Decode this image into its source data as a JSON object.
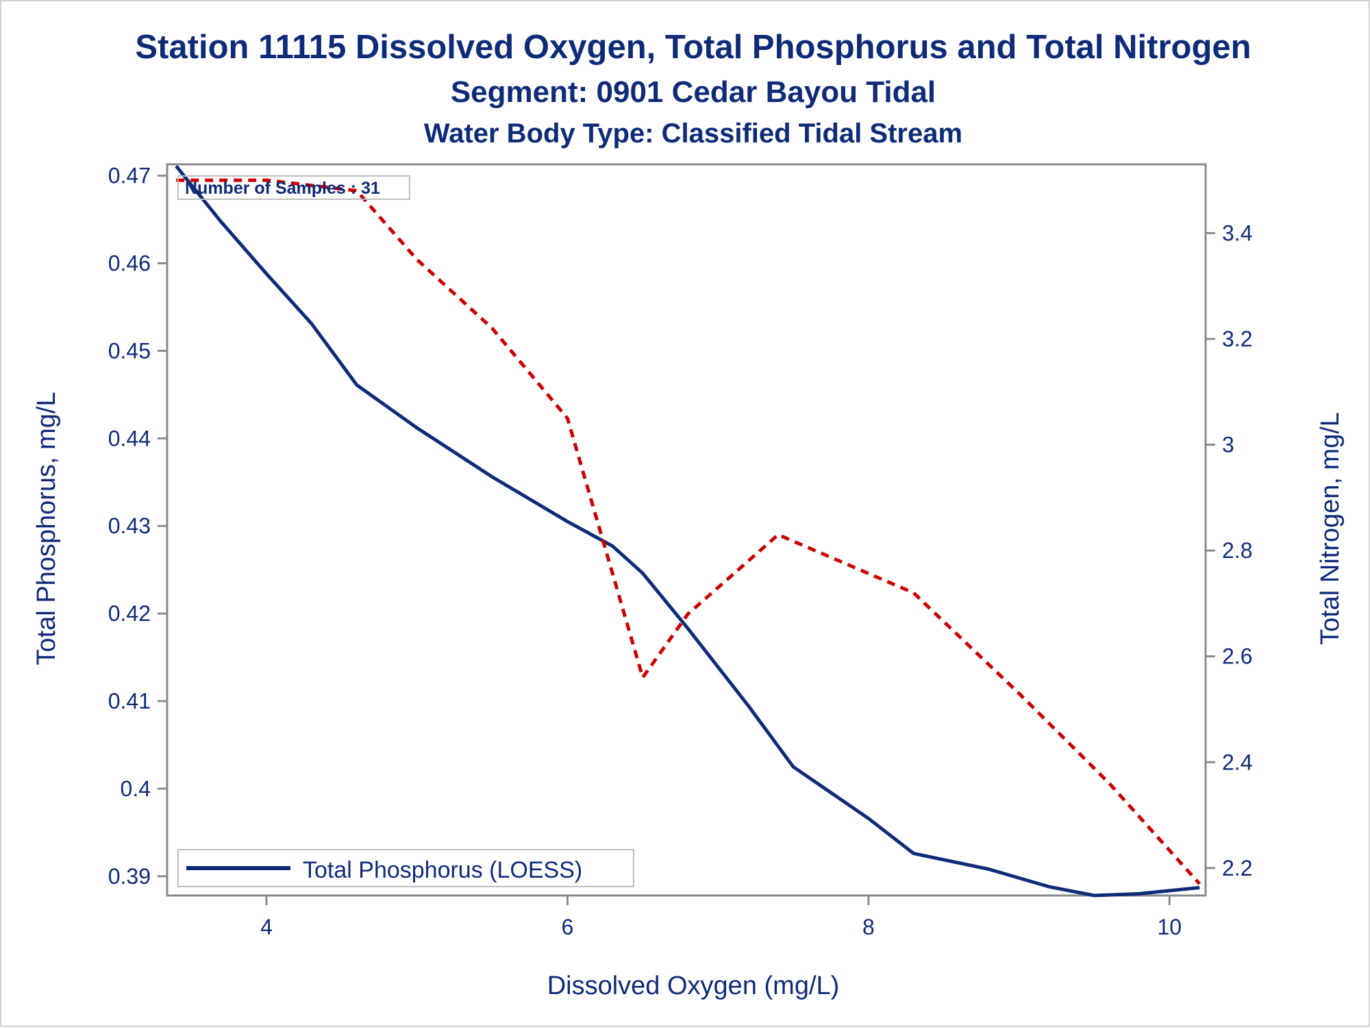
{
  "chart_data": {
    "type": "line",
    "title": "Station 11115  Dissolved Oxygen, Total Phosphorus and Total Nitrogen",
    "subtitle": "Segment: 0901  Cedar Bayou Tidal",
    "subtitle2": "Water Body Type: Classified Tidal Stream",
    "xlabel": "Dissolved Oxygen (mg/L)",
    "ylabel_left": "Total Phosphorus, mg/L",
    "ylabel_right": "Total Nitrogen, mg/L",
    "xlim": [
      3.34,
      10.24
    ],
    "ylim_left": [
      0.3878,
      0.4713
    ],
    "ylim_right": [
      2.148,
      3.53
    ],
    "x_ticks": [
      "4",
      "6",
      "8",
      "10"
    ],
    "y_left_ticks": [
      "0.39",
      "0.4",
      "0.41",
      "0.42",
      "0.43",
      "0.44",
      "0.45",
      "0.46",
      "0.47"
    ],
    "y_right_ticks": [
      "2.2",
      "2.4",
      "2.6",
      "2.8",
      "3",
      "3.2",
      "3.4"
    ],
    "annotation": "Number of Samples : 31",
    "legend_position": "bottom-left",
    "grid": false,
    "series": [
      {
        "name": "Total Phosphorus (LOESS)",
        "axis": "left",
        "style": "solid",
        "color": "#0e2b7a",
        "x": [
          3.4,
          3.7,
          4.0,
          4.3,
          4.6,
          5.0,
          5.5,
          6.0,
          6.3,
          6.5,
          6.8,
          7.2,
          7.5,
          8.0,
          8.3,
          8.8,
          9.2,
          9.5,
          9.8,
          10.2
        ],
        "y": [
          0.4711,
          0.4647,
          0.4588,
          0.4531,
          0.4461,
          0.4412,
          0.4356,
          0.4305,
          0.4277,
          0.4246,
          0.4183,
          0.4095,
          0.4025,
          0.3966,
          0.3926,
          0.3908,
          0.3888,
          0.3878,
          0.388,
          0.3887
        ]
      },
      {
        "name": "Total Nitrogen",
        "axis": "right",
        "style": "dashed",
        "color": "#cc0000",
        "x": [
          3.4,
          4.0,
          4.6,
          5.0,
          5.5,
          6.0,
          6.5,
          6.8,
          7.4,
          8.3,
          9.0,
          9.6,
          10.2
        ],
        "y": [
          3.5,
          3.5,
          3.48,
          3.35,
          3.22,
          3.05,
          2.56,
          2.68,
          2.83,
          2.72,
          2.53,
          2.36,
          2.17
        ]
      }
    ]
  }
}
